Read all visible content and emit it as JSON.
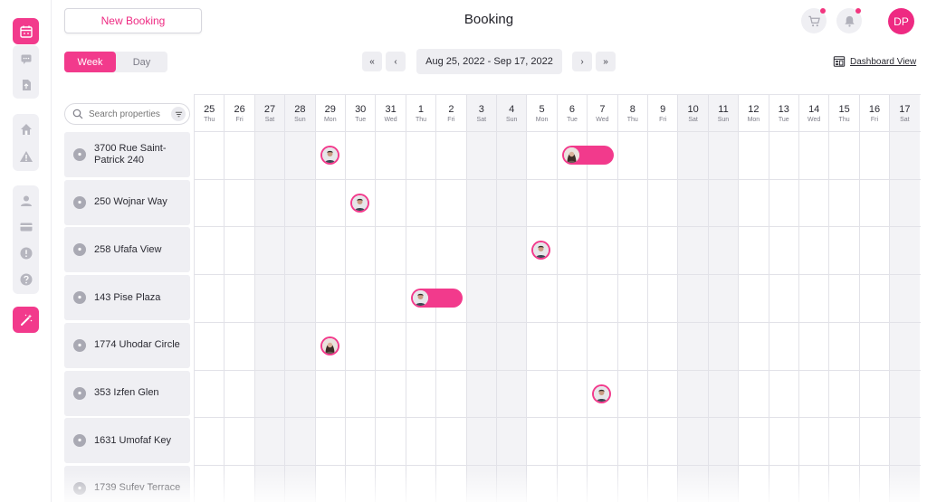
{
  "header": {
    "new_booking_label": "New Booking",
    "title": "Booking",
    "user_initials": "DP"
  },
  "toolbar": {
    "view_tabs": [
      {
        "label": "Week",
        "active": true
      },
      {
        "label": "Day",
        "active": false
      }
    ],
    "first_label": "«",
    "prev_label": "‹",
    "date_range": "Aug 25, 2022 - Sep 17, 2022",
    "next_label": "›",
    "last_label": "»",
    "dashboard_view_label": "Dashboard View"
  },
  "search": {
    "placeholder": "Search properties"
  },
  "days": [
    {
      "num": "25",
      "wd": "Thu",
      "weekend": false
    },
    {
      "num": "26",
      "wd": "Fri",
      "weekend": false
    },
    {
      "num": "27",
      "wd": "Sat",
      "weekend": true
    },
    {
      "num": "28",
      "wd": "Sun",
      "weekend": true
    },
    {
      "num": "29",
      "wd": "Mon",
      "weekend": false
    },
    {
      "num": "30",
      "wd": "Tue",
      "weekend": false
    },
    {
      "num": "31",
      "wd": "Wed",
      "weekend": false
    },
    {
      "num": "1",
      "wd": "Thu",
      "weekend": false
    },
    {
      "num": "2",
      "wd": "Fri",
      "weekend": false
    },
    {
      "num": "3",
      "wd": "Sat",
      "weekend": true
    },
    {
      "num": "4",
      "wd": "Sun",
      "weekend": true
    },
    {
      "num": "5",
      "wd": "Mon",
      "weekend": false
    },
    {
      "num": "6",
      "wd": "Tue",
      "weekend": false
    },
    {
      "num": "7",
      "wd": "Wed",
      "weekend": false
    },
    {
      "num": "8",
      "wd": "Thu",
      "weekend": false
    },
    {
      "num": "9",
      "wd": "Fri",
      "weekend": false
    },
    {
      "num": "10",
      "wd": "Sat",
      "weekend": true
    },
    {
      "num": "11",
      "wd": "Sun",
      "weekend": true
    },
    {
      "num": "12",
      "wd": "Mon",
      "weekend": false
    },
    {
      "num": "13",
      "wd": "Tue",
      "weekend": false
    },
    {
      "num": "14",
      "wd": "Wed",
      "weekend": false
    },
    {
      "num": "15",
      "wd": "Thu",
      "weekend": false
    },
    {
      "num": "16",
      "wd": "Fri",
      "weekend": false
    },
    {
      "num": "17",
      "wd": "Sat",
      "weekend": true
    }
  ],
  "properties": [
    {
      "name": "3700 Rue Saint-Patrick 240"
    },
    {
      "name": "250 Wojnar Way"
    },
    {
      "name": "258 Ufafa View"
    },
    {
      "name": "143 Pise Plaza"
    },
    {
      "name": "1774 Uhodar Circle"
    },
    {
      "name": "353 Izfen Glen"
    },
    {
      "name": "1631 Umofaf Key"
    },
    {
      "name": "1739 Sufev Terrace"
    }
  ],
  "bookings": [
    {
      "property": 0,
      "start_day": 4,
      "span_days": 1,
      "guest_icon": "guest-avatar-man"
    },
    {
      "property": 0,
      "start_day": 12,
      "span_days": 2,
      "guest_icon": "guest-avatar-woman"
    },
    {
      "property": 1,
      "start_day": 5,
      "span_days": 1,
      "guest_icon": "guest-avatar-man"
    },
    {
      "property": 2,
      "start_day": 11,
      "span_days": 1,
      "guest_icon": "guest-avatar-man"
    },
    {
      "property": 3,
      "start_day": 7,
      "span_days": 2,
      "guest_icon": "guest-avatar-man"
    },
    {
      "property": 4,
      "start_day": 4,
      "span_days": 1,
      "guest_icon": "guest-avatar-woman"
    },
    {
      "property": 5,
      "start_day": 13,
      "span_days": 1,
      "guest_icon": "guest-avatar-man"
    }
  ],
  "sidebar": {
    "icons": [
      "calendar-icon",
      "chat-icon",
      "document-icon",
      "home-icon",
      "warning-icon",
      "user-icon",
      "credit-card-icon",
      "alert-icon",
      "help-icon",
      "magic-wand-icon"
    ]
  },
  "colors": {
    "accent": "#f23a8c",
    "weekend_bg": "#f3f3f6",
    "panel_bg": "#efeff3"
  }
}
